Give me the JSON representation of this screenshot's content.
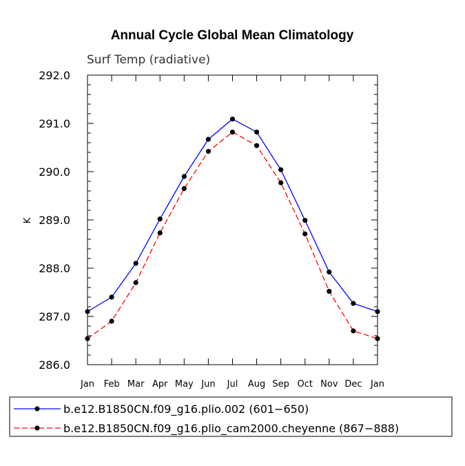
{
  "chart_data": {
    "type": "line",
    "title": "Annual Cycle Global Mean Climatology",
    "subtitle": "Surf Temp (radiative)",
    "ylabel": "K",
    "xlabel": "",
    "ylim": [
      286.0,
      292.0
    ],
    "yticks": [
      "292.0",
      "291.0",
      "290.0",
      "289.0",
      "288.0",
      "287.0",
      "286.0"
    ],
    "ytick_values": [
      292,
      291,
      290,
      289,
      288,
      287,
      286
    ],
    "categories": [
      "Jan",
      "Feb",
      "Mar",
      "Apr",
      "May",
      "Jun",
      "Jul",
      "Aug",
      "Sep",
      "Oct",
      "Nov",
      "Dec",
      "Jan"
    ],
    "series": [
      {
        "name": "b.e12.B1850CN.f09_g16.plio.002 (601−650)",
        "color": "#0000ff",
        "style": "solid",
        "values": [
          287.1,
          287.4,
          288.1,
          289.02,
          289.9,
          290.67,
          291.09,
          290.82,
          290.04,
          288.99,
          287.92,
          287.27,
          287.1
        ]
      },
      {
        "name": "b.e12.B1850CN.f09_g16.plio_cam2000.cheyenne (867−888)",
        "color": "#ff0000",
        "style": "dashed",
        "values": [
          286.54,
          286.9,
          287.7,
          288.73,
          289.65,
          290.42,
          290.82,
          290.54,
          289.77,
          288.71,
          287.52,
          286.7,
          286.54
        ]
      }
    ],
    "legend_position": "bottom"
  }
}
